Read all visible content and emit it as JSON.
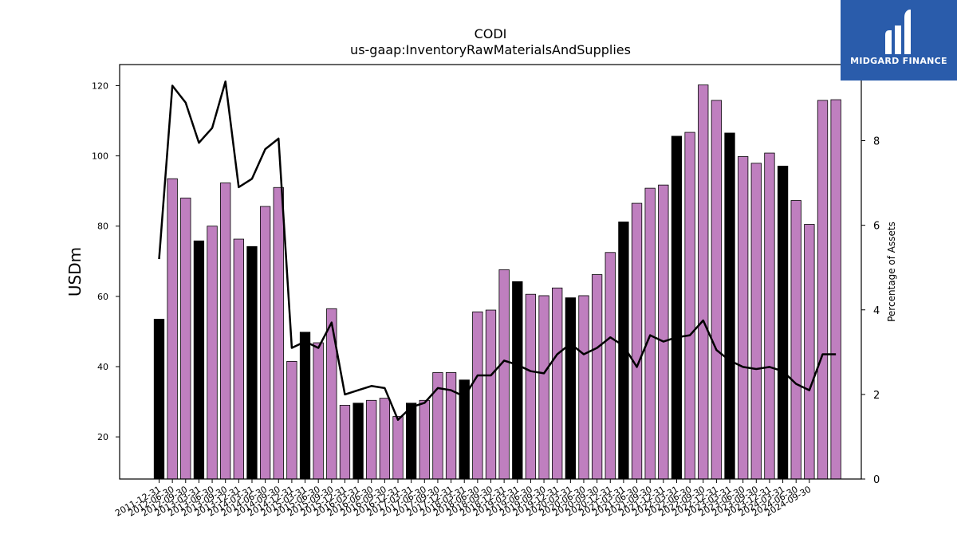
{
  "chart_data": {
    "type": "bar",
    "title": "CODI",
    "subtitle": "us-gaap:InventoryRawMaterialsAndSupplies",
    "ylabel": "USDm",
    "y2label": "Percentage of Assets",
    "ylim": [
      8,
      126
    ],
    "y2lim": [
      0,
      9.8
    ],
    "yticks": [
      20,
      40,
      60,
      80,
      100,
      120
    ],
    "y2ticks": [
      0,
      2,
      4,
      6,
      8
    ],
    "colors": {
      "annual": "#000000",
      "quarterly": "#bf7fbf",
      "line": "#000000"
    },
    "categories": [
      "2011-12-31",
      "2012-03-31",
      "2012-06-30",
      "2012-09-30",
      "2012-12-31",
      "2013-03-31",
      "2013-06-30",
      "2013-09-30",
      "2013-12-31",
      "2014-03-31",
      "2014-06-30",
      "2014-09-30",
      "2014-12-31",
      "2015-03-31",
      "2015-06-30",
      "2015-09-30",
      "2015-12-31",
      "2016-03-31",
      "2016-06-30",
      "2016-09-30",
      "2016-12-31",
      "2017-03-31",
      "2017-06-30",
      "2017-09-30",
      "2017-12-31",
      "2018-03-31",
      "2018-06-30",
      "2018-09-30",
      "2018-12-31",
      "2019-03-31",
      "2019-06-30",
      "2019-09-30",
      "2019-12-31",
      "2020-03-31",
      "2020-06-30",
      "2020-09-30",
      "2020-12-31",
      "2021-03-31",
      "2021-06-30",
      "2021-09-30",
      "2021-12-31",
      "2022-03-31",
      "2022-06-30",
      "2022-09-30",
      "2022-12-31",
      "2023-03-31",
      "2023-06-30",
      "2023-09-30",
      "2023-12-31",
      "2024-03-31",
      "2024-06-30",
      "2024-09-30"
    ],
    "xtick_labels": [
      "2011-12-31",
      "2012-06-30",
      "2012-09-30",
      "2013-03-31",
      "2013-06-30",
      "2013-09-30",
      "2013-12-31",
      "2014-03-31",
      "2014-06-30",
      "2014-09-30",
      "2014-12-31",
      "2015-03-31",
      "2015-06-30",
      "2015-09-30",
      "2015-12-31",
      "2016-03-31",
      "2016-06-30",
      "2016-09-30",
      "2016-12-31",
      "2017-03-31",
      "2017-06-30",
      "2017-09-30",
      "2017-12-31",
      "2018-03-31",
      "2018-06-30",
      "2018-09-30",
      "2018-12-31",
      "2019-03-31",
      "2019-06-30",
      "2019-09-30",
      "2019-12-31",
      "2020-03-31",
      "2020-06-30",
      "2020-09-30",
      "2020-12-31",
      "2021-03-31",
      "2021-06-30",
      "2021-09-30",
      "2021-12-31",
      "2022-03-31",
      "2022-06-30",
      "2022-09-30",
      "2022-12-31",
      "2023-03-31",
      "2023-06-30",
      "2023-09-30",
      "2023-12-31",
      "2024-03-31",
      "2024-06-30",
      "2024-09-30"
    ],
    "values": [
      53.5,
      93.5,
      88.0,
      75.8,
      80.0,
      92.3,
      76.3,
      74.2,
      85.6,
      91.0,
      41.5,
      49.8,
      46.8,
      56.5,
      29.0,
      29.6,
      30.4,
      31.0,
      25.8,
      29.6,
      30.4,
      38.3,
      38.3,
      36.2,
      55.6,
      56.1,
      67.6,
      64.2,
      60.6,
      60.2,
      62.4,
      59.6,
      60.2,
      66.2,
      72.5,
      81.2,
      86.5,
      90.8,
      91.7,
      105.6,
      106.7,
      120.2,
      115.8,
      106.5,
      99.8,
      97.9,
      100.8,
      97.1,
      87.3,
      80.5,
      115.8,
      116.0
    ],
    "annual": [
      true,
      false,
      false,
      true,
      false,
      false,
      false,
      true,
      false,
      false,
      false,
      true,
      false,
      false,
      false,
      true,
      false,
      false,
      false,
      true,
      false,
      false,
      false,
      true,
      false,
      false,
      false,
      true,
      false,
      false,
      false,
      true,
      false,
      false,
      false,
      true,
      false,
      false,
      false,
      true,
      false,
      false,
      false,
      true,
      false,
      false,
      false,
      true,
      false,
      false,
      false,
      false
    ],
    "pct_assets": [
      5.2,
      9.3,
      8.9,
      7.95,
      8.3,
      9.4,
      6.9,
      7.1,
      7.8,
      8.05,
      3.1,
      3.25,
      3.1,
      3.7,
      2.0,
      2.1,
      2.2,
      2.15,
      1.4,
      1.7,
      1.8,
      2.15,
      2.1,
      1.95,
      2.45,
      2.45,
      2.8,
      2.7,
      2.55,
      2.5,
      2.95,
      3.2,
      2.95,
      3.1,
      3.35,
      3.15,
      2.65,
      3.4,
      3.25,
      3.35,
      3.4,
      3.75,
      3.05,
      2.8,
      2.65,
      2.6,
      2.65,
      2.55,
      2.25,
      2.1,
      2.95,
      2.95
    ]
  },
  "logo": {
    "text": "MIDGARD FINANCE"
  }
}
